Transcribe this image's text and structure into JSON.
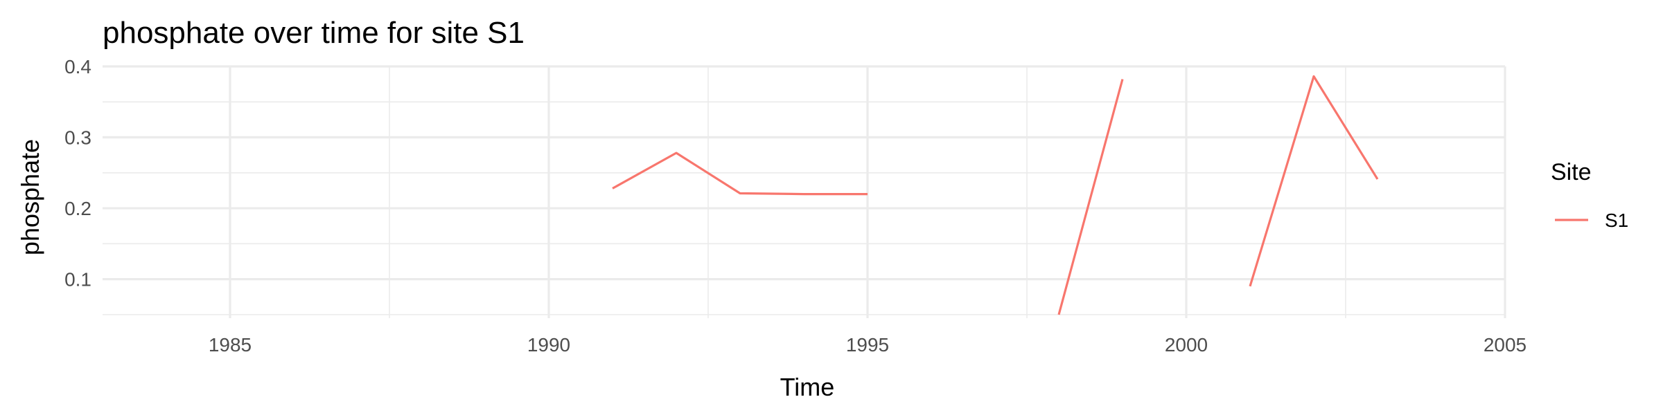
{
  "chart_data": {
    "type": "line",
    "title": "phosphate over time for site S1",
    "xlabel": "Time",
    "ylabel": "phosphate",
    "xlim": [
      1983,
      2005
    ],
    "ylim": [
      0.045,
      0.4
    ],
    "x_ticks": [
      1985,
      1990,
      1995,
      2000,
      2005
    ],
    "x_tick_labels": [
      "1985",
      "1990",
      "1995",
      "2000",
      "2005"
    ],
    "x_minor_ticks": [
      1987.5,
      1992.5,
      1997.5,
      2002.5
    ],
    "y_ticks": [
      0.1,
      0.2,
      0.3,
      0.4
    ],
    "y_tick_labels": [
      "0.1",
      "0.2",
      "0.3",
      "0.4"
    ],
    "y_minor_ticks": [
      0.05,
      0.15,
      0.25,
      0.35
    ],
    "grid": true,
    "legend": {
      "title": "Site",
      "position": "right"
    },
    "series": [
      {
        "name": "S1",
        "color": "#F8766D",
        "segments": [
          [
            [
              1991,
              0.228
            ],
            [
              1992,
              0.278
            ],
            [
              1993,
              0.221
            ],
            [
              1994,
              0.22
            ],
            [
              1995,
              0.22
            ]
          ],
          [
            [
              1998,
              0.05
            ],
            [
              1999,
              0.382
            ]
          ],
          [
            [
              2001,
              0.09
            ],
            [
              2002,
              0.386
            ],
            [
              2003,
              0.241
            ]
          ]
        ]
      }
    ]
  }
}
